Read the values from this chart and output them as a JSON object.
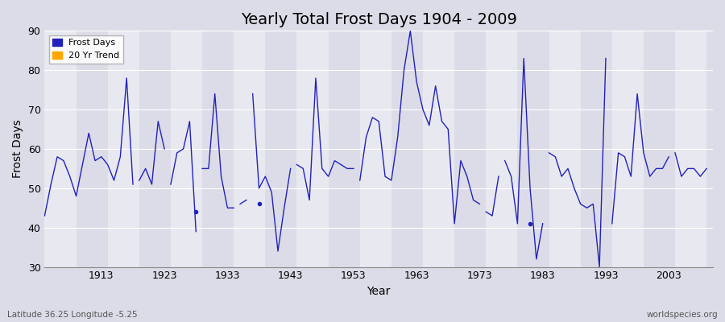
{
  "title": "Yearly Total Frost Days 1904 - 2009",
  "xlabel": "Year",
  "ylabel": "Frost Days",
  "xlim": [
    1904,
    2010
  ],
  "ylim": [
    30,
    90
  ],
  "yticks": [
    30,
    40,
    50,
    60,
    70,
    80,
    90
  ],
  "xticks": [
    1913,
    1923,
    1933,
    1943,
    1953,
    1963,
    1973,
    1983,
    1993,
    2003
  ],
  "bg_color": "#dcdce8",
  "plot_bg_color": "#dcdce8",
  "line_color": "#2222bb",
  "legend_entries": [
    "Frost Days",
    "20 Yr Trend"
  ],
  "legend_colors": [
    "#2222bb",
    "#ffa500"
  ],
  "footer_left": "Latitude 36.25 Longitude -5.25",
  "footer_right": "worldspecies.org",
  "segments": [
    {
      "years": [
        1904,
        1905,
        1906,
        1907,
        1908,
        1909,
        1910,
        1911,
        1912,
        1913,
        1914,
        1915,
        1916,
        1917,
        1918
      ],
      "values": [
        43,
        51,
        58,
        57,
        53,
        48,
        56,
        64,
        57,
        58,
        56,
        52,
        58,
        78,
        51
      ]
    },
    {
      "years": [
        1919,
        1920,
        1921,
        1922,
        1923
      ],
      "values": [
        52,
        55,
        51,
        67,
        60
      ]
    },
    {
      "years": [
        1924,
        1925,
        1926,
        1927,
        1928
      ],
      "values": [
        51,
        59,
        60,
        67,
        39
      ]
    },
    {
      "years": [
        1929,
        1930,
        1931,
        1932,
        1933,
        1934
      ],
      "values": [
        55,
        55,
        74,
        53,
        45,
        45
      ]
    },
    {
      "years": [
        1935,
        1936
      ],
      "values": [
        46,
        47
      ]
    },
    {
      "years": [
        1937,
        1938,
        1939,
        1940,
        1941,
        1942,
        1943
      ],
      "values": [
        74,
        50,
        53,
        49,
        34,
        45,
        55
      ]
    },
    {
      "years": [
        1944,
        1945,
        1946,
        1947,
        1948,
        1949,
        1950,
        1951,
        1952,
        1953
      ],
      "values": [
        56,
        55,
        47,
        78,
        55,
        53,
        57,
        56,
        55,
        55
      ]
    },
    {
      "years": [
        1954,
        1955,
        1956,
        1957,
        1958,
        1959,
        1960,
        1961,
        1962,
        1963,
        1964,
        1965,
        1966,
        1967,
        1968,
        1969,
        1970,
        1971,
        1972,
        1973
      ],
      "values": [
        52,
        63,
        68,
        67,
        53,
        52,
        63,
        80,
        90,
        77,
        70,
        66,
        76,
        67,
        65,
        41,
        57,
        53,
        47,
        46
      ]
    },
    {
      "years": [
        1974,
        1975,
        1976
      ],
      "values": [
        44,
        43,
        53
      ]
    },
    {
      "years": [
        1977,
        1978,
        1979,
        1980,
        1981,
        1982,
        1983
      ],
      "values": [
        57,
        53,
        41,
        83,
        50,
        32,
        41
      ]
    },
    {
      "years": [
        1984,
        1985,
        1986,
        1987,
        1988,
        1989,
        1990,
        1991,
        1992,
        1993
      ],
      "values": [
        59,
        58,
        53,
        55,
        50,
        46,
        45,
        46,
        30,
        83
      ]
    },
    {
      "years": [
        1994,
        1995,
        1996,
        1997,
        1998,
        1999,
        2000,
        2001,
        2002,
        2003
      ],
      "values": [
        41,
        59,
        58,
        53,
        74,
        59,
        53,
        55,
        55,
        58
      ]
    },
    {
      "years": [
        2004,
        2005,
        2006,
        2007,
        2008,
        2009
      ],
      "values": [
        59,
        53,
        55,
        55,
        53,
        55
      ]
    }
  ],
  "isolated_dots": [
    {
      "year": 1928,
      "value": 44
    },
    {
      "year": 1938,
      "value": 46
    },
    {
      "year": 1981,
      "value": 41
    }
  ]
}
